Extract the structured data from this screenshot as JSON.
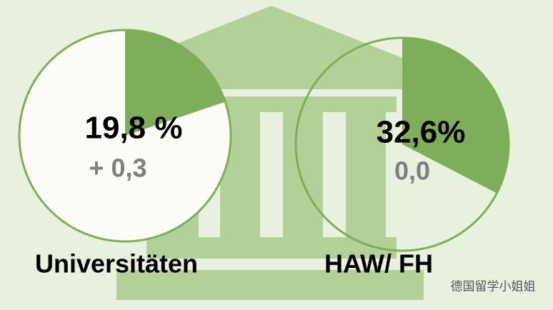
{
  "chart_data": [
    {
      "type": "pie",
      "categories": [
        "Universitäten"
      ],
      "values": [
        19.8
      ],
      "value_labels": [
        "19,8 %"
      ],
      "change_label": "+ 0,3",
      "color": "#7fae5a",
      "fill": "#fbfcf8"
    },
    {
      "type": "pie",
      "categories": [
        "HAW/ FH"
      ],
      "values": [
        32.6
      ],
      "value_labels": [
        "32,6%"
      ],
      "change_label": "0,0",
      "color": "#7fae5a",
      "fill": "none"
    }
  ],
  "watermark": "德国留学小姐姐"
}
